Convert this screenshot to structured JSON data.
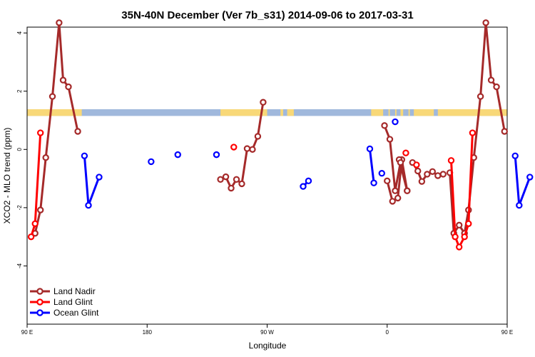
{
  "chart_data": {
    "type": "line",
    "title": "35N-40N December (Ver 7b_s31)   2014-09-06 to 2017-03-31",
    "xlabel": "Longitude",
    "ylabel": "XCO2 - MLO trend (ppm)",
    "xlim": [
      90,
      450
    ],
    "ylim": [
      -6,
      4.2
    ],
    "x_ticks": [
      {
        "value": 90,
        "label": "90 E"
      },
      {
        "value": 180,
        "label": "180"
      },
      {
        "value": 270,
        "label": "90 W"
      },
      {
        "value": 360,
        "label": "0"
      },
      {
        "value": 450,
        "label": "90 E"
      },
      {
        "value": 540,
        "label": "180"
      }
    ],
    "y_ticks": [
      {
        "value": -4,
        "label": "-4"
      },
      {
        "value": -2,
        "label": "-2"
      },
      {
        "value": 0,
        "label": "0"
      },
      {
        "value": 2,
        "label": "2"
      },
      {
        "value": 4,
        "label": "4"
      }
    ],
    "grid": false,
    "legend_position": "bottom-left",
    "land_ocean_band": {
      "y_range": [
        1.15,
        1.38
      ],
      "ocean_color": "#a0b8dc",
      "land_color": "#f8d878",
      "land_segments": [
        [
          90,
          131
        ],
        [
          107,
          110
        ],
        [
          112,
          113
        ],
        [
          235,
          270
        ],
        [
          280,
          282
        ],
        [
          285,
          290
        ],
        [
          344,
          344
        ],
        [
          348,
          357
        ],
        [
          361,
          362
        ],
        [
          366,
          367
        ],
        [
          370,
          372
        ],
        [
          376,
          377
        ],
        [
          380,
          395
        ],
        [
          398,
          455
        ],
        [
          461,
          464
        ],
        [
          467,
          471
        ],
        [
          473,
          476
        ],
        [
          477,
          492
        ],
        [
          500,
          501
        ]
      ]
    },
    "series": [
      {
        "name": "Land Nadir",
        "color": "#a52a2a",
        "segments": [
          [
            [
              96,
              -2.88
            ],
            [
              100,
              -2.08
            ],
            [
              104,
              -0.28
            ],
            [
              109,
              1.82
            ],
            [
              114,
              4.35
            ],
            [
              117,
              2.38
            ],
            [
              121,
              2.15
            ],
            [
              128,
              0.62
            ]
          ],
          [
            [
              235,
              -1.03
            ],
            [
              239,
              -0.94
            ],
            [
              243,
              -1.33
            ],
            [
              247,
              -1.03
            ],
            [
              251,
              -1.18
            ],
            [
              255,
              0.03
            ],
            [
              259,
              0.0
            ],
            [
              263,
              0.45
            ],
            [
              267,
              1.62
            ]
          ],
          [
            [
              360,
              -1.08
            ],
            [
              364,
              -1.78
            ],
            [
              368,
              -1.67
            ],
            [
              371,
              -0.35
            ],
            [
              375,
              -1.42
            ]
          ],
          [
            [
              379,
              -0.45
            ],
            [
              383,
              -0.74
            ],
            [
              386,
              -1.1
            ],
            [
              390,
              -0.85
            ],
            [
              394,
              -0.76
            ],
            [
              398,
              -0.9
            ],
            [
              402,
              -0.85
            ]
          ],
          [
            [
              375,
              -1.42
            ],
            [
              369,
              -0.35
            ]
          ],
          [
            [
              358,
              0.82
            ],
            [
              362,
              0.35
            ],
            [
              366,
              -1.42
            ],
            [
              370,
              -0.45
            ]
          ],
          [
            [
              407,
              -0.8
            ],
            [
              410,
              -2.88
            ],
            [
              414,
              -2.6
            ],
            [
              418,
              -2.88
            ],
            [
              421,
              -2.08
            ],
            [
              425,
              -0.28
            ],
            [
              430,
              1.82
            ],
            [
              434,
              4.35
            ],
            [
              438,
              2.38
            ],
            [
              442,
              2.15
            ],
            [
              448,
              0.62
            ]
          ]
        ]
      },
      {
        "name": "Land Glint",
        "color": "#ff0000",
        "segments": [
          [
            [
              93,
              -3.0
            ],
            [
              96,
              -2.55
            ],
            [
              100,
              0.57
            ]
          ],
          [
            [
              245,
              0.08
            ]
          ],
          [
            [
              374,
              -0.12
            ]
          ],
          [
            [
              382,
              -0.53
            ]
          ],
          [
            [
              408,
              -0.38
            ],
            [
              411,
              -3.0
            ],
            [
              414,
              -3.35
            ],
            [
              418,
              -3.0
            ],
            [
              421,
              -2.55
            ],
            [
              424,
              0.57
            ]
          ]
        ]
      },
      {
        "name": "Ocean Glint",
        "color": "#0000ff",
        "segments": [
          [
            [
              133,
              -0.22
            ],
            [
              136,
              -1.92
            ],
            [
              144,
              -0.95
            ]
          ],
          [
            [
              183,
              -0.42
            ]
          ],
          [
            [
              203,
              -0.18
            ]
          ],
          [
            [
              232,
              -0.18
            ]
          ],
          [
            [
              297,
              -1.27
            ],
            [
              301,
              -1.08
            ]
          ],
          [
            [
              347,
              0.02
            ],
            [
              350,
              -1.15
            ]
          ],
          [
            [
              356,
              -0.82
            ]
          ],
          [
            [
              366,
              0.95
            ]
          ],
          [
            [
              456,
              -0.22
            ],
            [
              459,
              -1.92
            ],
            [
              467,
              -0.95
            ]
          ]
        ]
      }
    ],
    "legend": [
      {
        "label": "Land Nadir",
        "color": "#a52a2a"
      },
      {
        "label": "Land Glint",
        "color": "#ff0000"
      },
      {
        "label": "Ocean Glint",
        "color": "#0000ff"
      }
    ]
  }
}
